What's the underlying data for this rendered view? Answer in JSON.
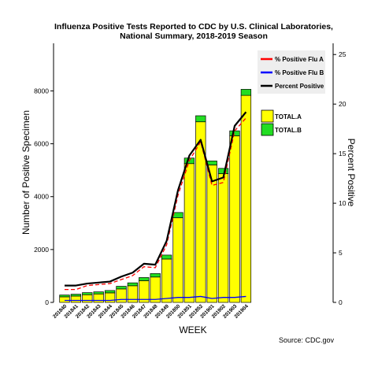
{
  "chart_data": {
    "type": "bar",
    "title": "Influenza Positive Tests Reported to CDC by U.S. Clinical Laboratories,",
    "subtitle": "National Summary, 2018-2019 Season",
    "xlabel": "WEEK",
    "ylabel": "Number of Positive Specimen",
    "y2label": "Percent Positive",
    "source": "Source: CDC.gov",
    "ylim": [
      0,
      9800
    ],
    "y2lim": [
      0,
      26.13
    ],
    "yticks": [
      0,
      2000,
      4000,
      6000,
      8000
    ],
    "y2ticks": [
      0,
      5,
      10,
      15,
      20,
      25
    ],
    "categories": [
      "201840",
      "201841",
      "201842",
      "201843",
      "201844",
      "201845",
      "201846",
      "201847",
      "201848",
      "201849",
      "201850",
      "201851",
      "201852",
      "201901",
      "201902",
      "201903",
      "201904"
    ],
    "stack": [
      {
        "name": "TOTAL.A",
        "color": "#ffff00",
        "values": [
          210,
          240,
          290,
          320,
          360,
          510,
          630,
          820,
          960,
          1640,
          3200,
          5250,
          6830,
          5200,
          4870,
          6300,
          7830
        ]
      },
      {
        "name": "TOTAL.B",
        "color": "#22dd22",
        "values": [
          70,
          70,
          80,
          80,
          90,
          100,
          110,
          120,
          130,
          150,
          200,
          210,
          230,
          150,
          200,
          190,
          230
        ]
      }
    ],
    "lines": [
      {
        "name": "% Positive Flu A",
        "color": "#ff0000",
        "dash": "5,3",
        "values": [
          1.3,
          1.3,
          1.7,
          1.8,
          1.9,
          2.3,
          2.7,
          3.6,
          3.5,
          5.8,
          10.8,
          14.3,
          16.2,
          11.8,
          12.1,
          17.3,
          18.6
        ]
      },
      {
        "name": "% Positive Flu B",
        "color": "#0000ff",
        "dash": "",
        "values": [
          0.2,
          0.2,
          0.2,
          0.2,
          0.2,
          0.3,
          0.3,
          0.3,
          0.3,
          0.4,
          0.5,
          0.5,
          0.6,
          0.4,
          0.5,
          0.5,
          0.6
        ]
      },
      {
        "name": "Percent Positive",
        "color": "#000000",
        "dash": "",
        "values": [
          1.7,
          1.7,
          1.9,
          2.0,
          2.1,
          2.6,
          3.0,
          3.9,
          3.8,
          6.2,
          11.3,
          14.8,
          16.4,
          12.2,
          12.6,
          17.8,
          19.2
        ]
      }
    ],
    "legend_lines_position": "top-right",
    "legend_bars_position": "upper-right"
  }
}
